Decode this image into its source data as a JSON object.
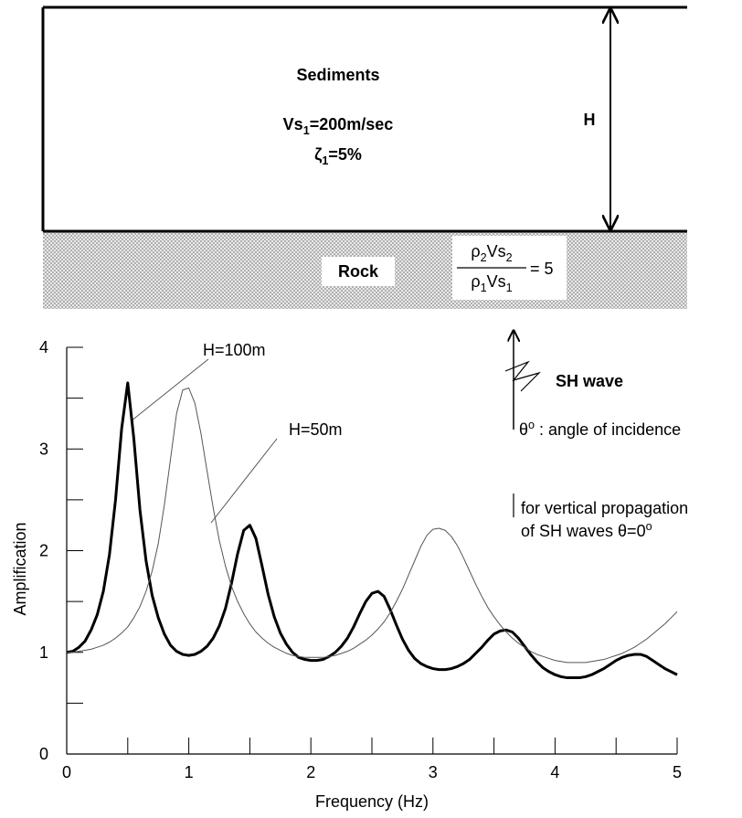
{
  "diagram": {
    "sediments": "Sediments",
    "vs": [
      "Vs",
      "1",
      "=200m/sec"
    ],
    "damping": [
      "ζ",
      "1",
      "=5%"
    ],
    "thickness": "H",
    "rock": "Rock",
    "ratio_numerator": [
      "ρ",
      "2",
      "Vs",
      "2"
    ],
    "ratio_denominator": [
      "ρ",
      "1",
      "Vs",
      "1"
    ],
    "ratio_value": "= 5",
    "wave": "SH wave",
    "incidence": [
      "θ",
      "o",
      " : angle of incidence"
    ],
    "note_1": "for vertical propagation",
    "note_2": [
      "of SH waves θ=0",
      "o"
    ]
  },
  "chart_data": {
    "type": "line",
    "xlabel": "Frequency (Hz)",
    "ylabel": "Amplification",
    "annotations": [
      "H=100m",
      "H=50m"
    ],
    "xlim": [
      0,
      5
    ],
    "ylim": [
      0,
      4
    ],
    "xticks": [
      0,
      1,
      2,
      3,
      4,
      5
    ],
    "yticks": [
      0,
      1,
      2,
      3,
      4
    ],
    "xminorticks": [
      0.5,
      1.5,
      2.5,
      3.5,
      4.5
    ],
    "yminorticks": [
      0.5,
      1.5,
      2.5,
      3.5
    ],
    "grid": false,
    "x": [
      0,
      0.05,
      0.1,
      0.15,
      0.2,
      0.25,
      0.3,
      0.35,
      0.4,
      0.45,
      0.5,
      0.55,
      0.6,
      0.65,
      0.7,
      0.75,
      0.8,
      0.85,
      0.9,
      0.95,
      1.0,
      1.05,
      1.1,
      1.15,
      1.2,
      1.25,
      1.3,
      1.35,
      1.4,
      1.45,
      1.5,
      1.55,
      1.6,
      1.65,
      1.7,
      1.75,
      1.8,
      1.85,
      1.9,
      1.95,
      2.0,
      2.05,
      2.1,
      2.15,
      2.2,
      2.25,
      2.3,
      2.35,
      2.4,
      2.45,
      2.5,
      2.55,
      2.6,
      2.65,
      2.7,
      2.75,
      2.8,
      2.85,
      2.9,
      2.95,
      3.0,
      3.05,
      3.1,
      3.15,
      3.2,
      3.25,
      3.3,
      3.35,
      3.4,
      3.45,
      3.5,
      3.55,
      3.6,
      3.65,
      3.7,
      3.75,
      3.8,
      3.85,
      3.9,
      3.95,
      4.0,
      4.05,
      4.1,
      4.15,
      4.2,
      4.25,
      4.3,
      4.35,
      4.4,
      4.45,
      4.5,
      4.55,
      4.6,
      4.65,
      4.7,
      4.75,
      4.8,
      4.85,
      4.9,
      4.95,
      5.0
    ],
    "series": [
      {
        "color": "#000000",
        "width": 3,
        "values": [
          1.0,
          1.01,
          1.05,
          1.11,
          1.22,
          1.37,
          1.6,
          1.96,
          2.5,
          3.2,
          3.65,
          3.1,
          2.4,
          1.9,
          1.56,
          1.34,
          1.18,
          1.07,
          1.01,
          0.98,
          0.97,
          0.98,
          1.01,
          1.06,
          1.14,
          1.26,
          1.43,
          1.68,
          1.97,
          2.2,
          2.25,
          2.12,
          1.85,
          1.57,
          1.35,
          1.19,
          1.08,
          1.0,
          0.95,
          0.93,
          0.92,
          0.92,
          0.93,
          0.96,
          1.0,
          1.06,
          1.14,
          1.25,
          1.38,
          1.5,
          1.58,
          1.6,
          1.55,
          1.42,
          1.27,
          1.13,
          1.02,
          0.94,
          0.89,
          0.86,
          0.84,
          0.83,
          0.83,
          0.84,
          0.86,
          0.89,
          0.93,
          0.99,
          1.05,
          1.12,
          1.18,
          1.21,
          1.22,
          1.2,
          1.14,
          1.06,
          0.98,
          0.91,
          0.85,
          0.81,
          0.78,
          0.76,
          0.75,
          0.75,
          0.75,
          0.76,
          0.78,
          0.81,
          0.84,
          0.88,
          0.92,
          0.95,
          0.97,
          0.98,
          0.98,
          0.96,
          0.92,
          0.88,
          0.84,
          0.81,
          0.78
        ]
      },
      {
        "color": "#555555",
        "width": 1,
        "values": [
          1.0,
          1.0,
          1.01,
          1.02,
          1.03,
          1.05,
          1.07,
          1.1,
          1.14,
          1.19,
          1.25,
          1.34,
          1.45,
          1.6,
          1.8,
          2.07,
          2.45,
          2.9,
          3.35,
          3.58,
          3.6,
          3.45,
          3.15,
          2.78,
          2.42,
          2.1,
          1.85,
          1.65,
          1.5,
          1.38,
          1.28,
          1.2,
          1.14,
          1.09,
          1.05,
          1.02,
          0.99,
          0.97,
          0.96,
          0.95,
          0.95,
          0.95,
          0.95,
          0.96,
          0.97,
          0.99,
          1.01,
          1.04,
          1.08,
          1.12,
          1.17,
          1.23,
          1.3,
          1.39,
          1.5,
          1.62,
          1.76,
          1.9,
          2.04,
          2.15,
          2.21,
          2.22,
          2.2,
          2.14,
          2.05,
          1.93,
          1.8,
          1.67,
          1.55,
          1.44,
          1.35,
          1.27,
          1.2,
          1.14,
          1.09,
          1.05,
          1.01,
          0.98,
          0.96,
          0.94,
          0.92,
          0.91,
          0.9,
          0.9,
          0.9,
          0.9,
          0.91,
          0.92,
          0.93,
          0.95,
          0.97,
          0.99,
          1.02,
          1.05,
          1.09,
          1.13,
          1.18,
          1.23,
          1.28,
          1.34,
          1.4
        ]
      }
    ]
  }
}
